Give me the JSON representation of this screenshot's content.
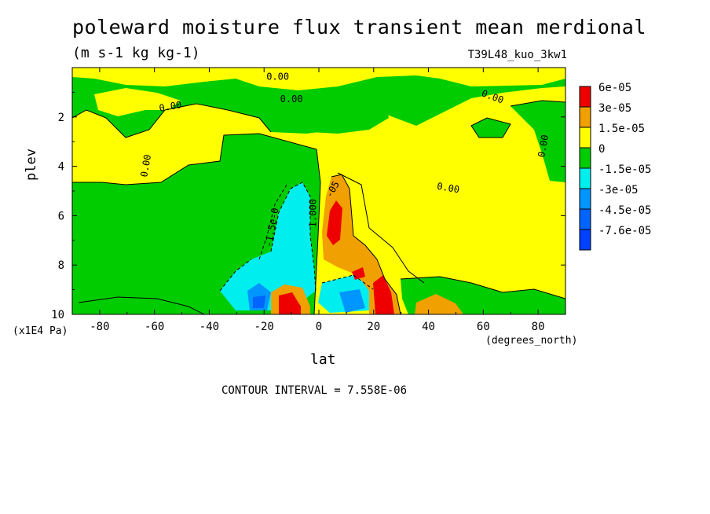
{
  "chart_data": {
    "type": "heatmap",
    "title": "poleward moisture flux transient mean merdional",
    "subtitle": "(m s-1 kg kg-1)",
    "run_id": "T39L48_kuo_3kw1",
    "xlabel": "lat",
    "ylabel": "plev",
    "x_units": "(degrees_north)",
    "y_units": "(x1E4 Pa)",
    "xlim": [
      -90,
      90
    ],
    "ylim": [
      0,
      10
    ],
    "x_ticks": [
      "-80",
      "-60",
      "-40",
      "-20",
      "0",
      "20",
      "40",
      "60",
      "80"
    ],
    "x_tick_values": [
      -80,
      -60,
      -40,
      -20,
      0,
      20,
      40,
      60,
      80
    ],
    "y_ticks": [
      "2",
      "4",
      "6",
      "8",
      "10"
    ],
    "y_tick_values": [
      2,
      4,
      6,
      8,
      10
    ],
    "contour_interval_text": "CONTOUR INTERVAL = 7.558E-06",
    "contour_labels": [
      "0.00",
      "0.00",
      "0.00",
      "0.00",
      "0.00",
      "0.00",
      "0.00",
      "-1.5e-0",
      "1.000",
      "-05"
    ],
    "legend": {
      "placement": "right",
      "entries": [
        {
          "label": "6e-05",
          "color": "#ee0000"
        },
        {
          "label": "3e-05",
          "color": "#f0a000"
        },
        {
          "label": "1.5e-05",
          "color": "#ffff00"
        },
        {
          "label": "0",
          "color": "#00cc00"
        },
        {
          "label": "-1.5e-05",
          "color": "#00eeee"
        },
        {
          "label": "-3e-05",
          "color": "#0096ff"
        },
        {
          "label": "-4.5e-05",
          "color": "#0064ff"
        },
        {
          "label": "-7.6e-05",
          "color": "#0040ff"
        }
      ]
    },
    "colors": {
      "positive_band": "#ffff00",
      "negative_band": "#00cc00",
      "strong_positive": "#f0a000",
      "max_positive": "#ee0000",
      "neg_cyan": "#00eeee",
      "neg_blue": "#0096ff",
      "neg_deep": "#0040ff"
    }
  }
}
